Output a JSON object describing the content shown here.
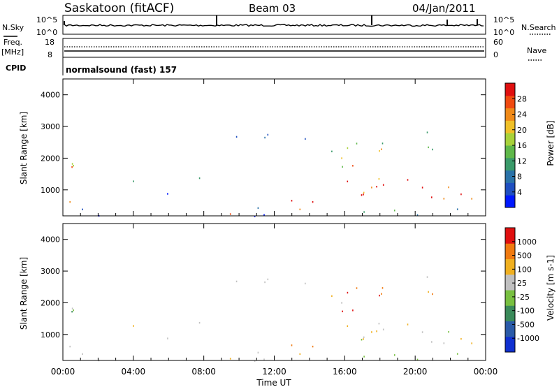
{
  "header": {
    "station": "Saskatoon (fitACF)",
    "beam": "Beam 03",
    "date": "04/Jan/2011"
  },
  "aux": {
    "nsky_label": "N.Sky",
    "nsearch_label": "N.Search",
    "freq_label": "Freq.",
    "freq_unit": "[MHz]",
    "nave_label": "Nave",
    "cpid_label": "CPID",
    "cpid_text": "normalsound (fast) 157",
    "noise_ticks_left": [
      "10^5",
      "10^0"
    ],
    "noise_ticks_right": [
      "10^5",
      "10^0"
    ],
    "freq_ticks": [
      "18",
      "8"
    ],
    "nave_ticks": [
      "60",
      "0"
    ]
  },
  "chart_data": [
    {
      "type": "heatmap",
      "panel": "power",
      "ylabel": "Slant Range [km]",
      "ylim": [
        180,
        4500
      ],
      "yticks": [
        "1000",
        "2000",
        "3000",
        "4000"
      ],
      "xlim": [
        0,
        24
      ],
      "colorbar_label": "Power [dB]",
      "colorbar_ticks": [
        "28",
        "24",
        "20",
        "16",
        "12",
        "8",
        "4"
      ],
      "colors": [
        "#0018ff",
        "#1f4fc0",
        "#2a72a8",
        "#3a9a6a",
        "#5fb84a",
        "#a8d23a",
        "#f0c028",
        "#f08a18",
        "#f04a10",
        "#e01010"
      ]
    },
    {
      "type": "heatmap",
      "panel": "velocity",
      "ylabel": "Slant Range [km]",
      "xlabel": "Time UT",
      "ylim": [
        180,
        4500
      ],
      "yticks": [
        "1000",
        "2000",
        "3000",
        "4000"
      ],
      "xlim": [
        0,
        24
      ],
      "xticks": [
        "00:00",
        "04:00",
        "08:00",
        "12:00",
        "16:00",
        "20:00",
        "00:00"
      ],
      "colorbar_label": "Velocity [m s-1]",
      "colorbar_ticks": [
        "1000",
        "500",
        "100",
        "25",
        "-25",
        "-100",
        "-500",
        "-1000"
      ],
      "colors": [
        "#1030d0",
        "#2a5aa8",
        "#3a8a5a",
        "#78c040",
        "#c0c0c0",
        "#f0b020",
        "#f07a10",
        "#e01010"
      ]
    }
  ]
}
